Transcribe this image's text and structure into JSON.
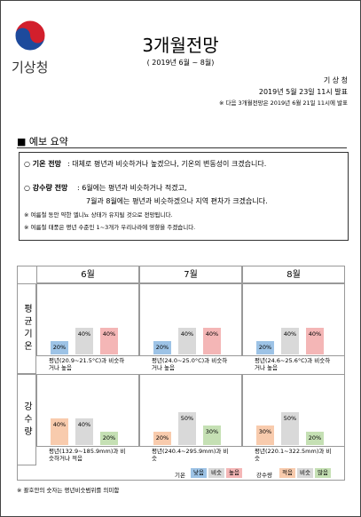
{
  "header": {
    "logo_text": "기상청",
    "title": "3개월전망",
    "subtitle": "( 2019년 6월 ~ 8월)",
    "issuer": "기 상 청",
    "issued": "2019년 5월 23일 11시 발표",
    "next_note": "※ 다음 3개월전망은 2019년 6월 21일 11시에 발표"
  },
  "summary": {
    "heading": "■ 예보 요약",
    "items": [
      {
        "label": "○ 기온 전망",
        "lines": [
          " : 대체로 평년과 비슷하거나 높겠으나, 기온의 변동성이 크겠습니다."
        ]
      },
      {
        "label": "○ 강수량 전망",
        "lines": [
          " : 6월에는 평년과 비슷하거나 적겠고,",
          "7월과 8월에는 평년과 비슷하겠으나 지역 편차가 크겠습니다."
        ]
      }
    ],
    "notes": [
      "※ 여름철 동안 약한 엘니뇨 상태가 유지될 것으로 전망됩니다.",
      "※ 여름철 태풍은 평년 수준인 1~3개가 우리나라에 영향을 주겠습니다."
    ]
  },
  "outlook": {
    "months": [
      "6월",
      "7월",
      "8월"
    ],
    "rows": [
      {
        "label": "평균기온",
        "colors": [
          "#9dc3e6",
          "#d9d9d9",
          "#f4b6b6"
        ],
        "panels": [
          {
            "values": [
              20,
              40,
              40
            ],
            "value_labels": [
              "20%",
              "40%",
              "40%"
            ],
            "caption": "평년(20.9~21.5°C)과 비슷하거나 높음"
          },
          {
            "values": [
              20,
              40,
              40
            ],
            "value_labels": [
              "20%",
              "40%",
              "40%"
            ],
            "caption": "평년(24.0~25.0°C)과 비슷하거나 높음"
          },
          {
            "values": [
              20,
              40,
              40
            ],
            "value_labels": [
              "20%",
              "40%",
              "40%"
            ],
            "caption": "평년(24.6~25.6°C)과 비슷하거나 높음"
          }
        ]
      },
      {
        "label": "강수량",
        "colors": [
          "#f8cbad",
          "#d9d9d9",
          "#c5e0b4"
        ],
        "panels": [
          {
            "values": [
              40,
              40,
              20
            ],
            "value_labels": [
              "40%",
              "40%",
              "20%"
            ],
            "caption": "평년(132.9~185.9mm)과 비슷하거나 적음"
          },
          {
            "values": [
              20,
              50,
              30
            ],
            "value_labels": [
              "20%",
              "50%",
              "30%"
            ],
            "caption": "평년(240.4~295.9mm)과 비슷"
          },
          {
            "values": [
              30,
              50,
              20
            ],
            "value_labels": [
              "30%",
              "50%",
              "20%"
            ],
            "caption": "평년(220.1~322.5mm)과 비슷"
          }
        ]
      }
    ],
    "legend": [
      {
        "label": "기온",
        "items": [
          "낮음",
          "비슷",
          "높음"
        ]
      },
      {
        "label": "강수량",
        "items": [
          "적음",
          "비슷",
          "많음"
        ]
      }
    ]
  },
  "footnote": "※ 괄호안의 숫자는 평년비슷범위를 의미함"
}
